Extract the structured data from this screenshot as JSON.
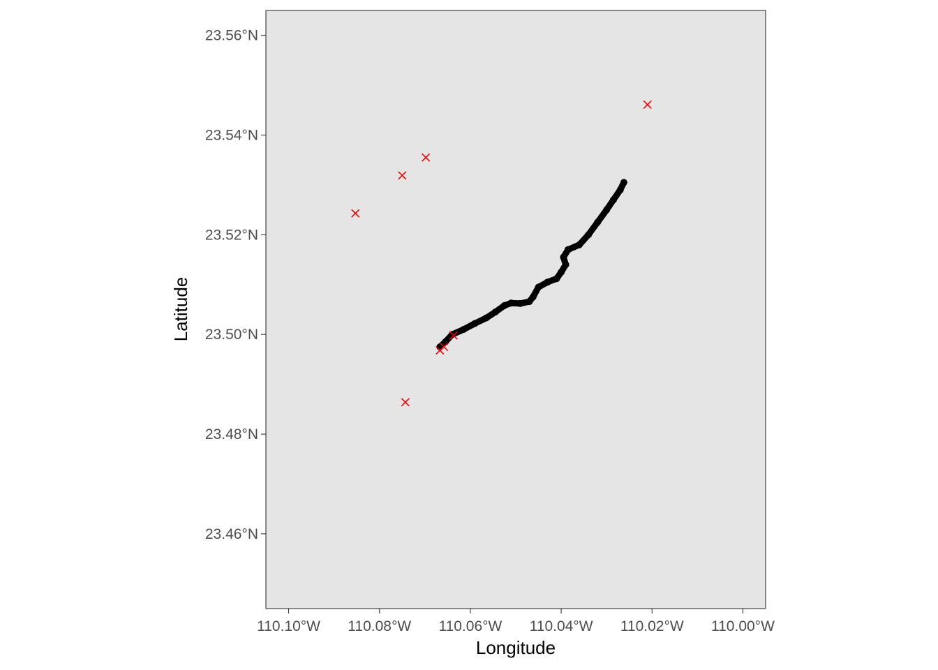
{
  "chart_data": {
    "type": "scatter",
    "title": "",
    "xlabel": "Longitude",
    "ylabel": "Latitude",
    "xlim": [
      -110.105,
      -109.995
    ],
    "ylim": [
      23.445,
      23.565
    ],
    "x_ticks": [
      {
        "value": -110.1,
        "label": "110.10°W"
      },
      {
        "value": -110.08,
        "label": "110.08°W"
      },
      {
        "value": -110.06,
        "label": "110.06°W"
      },
      {
        "value": -110.04,
        "label": "110.04°W"
      },
      {
        "value": -110.02,
        "label": "110.02°W"
      },
      {
        "value": -110.0,
        "label": "110.00°W"
      }
    ],
    "y_ticks": [
      {
        "value": 23.46,
        "label": "23.46°N"
      },
      {
        "value": 23.48,
        "label": "23.48°N"
      },
      {
        "value": 23.5,
        "label": "23.50°N"
      },
      {
        "value": 23.52,
        "label": "23.52°N"
      },
      {
        "value": 23.54,
        "label": "23.54°N"
      },
      {
        "value": 23.56,
        "label": "23.56°N"
      }
    ],
    "grid": false,
    "colors": {
      "panel": "#e5e5e5",
      "border": "#333333",
      "track": "#000000",
      "points": "#ee0000"
    },
    "series": [
      {
        "marker": "track",
        "x": [
          -110.0667,
          -110.0655,
          -110.064,
          -110.0615,
          -110.059,
          -110.0565,
          -110.0545,
          -110.0525,
          -110.051,
          -110.049,
          -110.047,
          -110.0462,
          -110.045,
          -110.043,
          -110.041,
          -110.04,
          -110.039,
          -110.0395,
          -110.0385,
          -110.036,
          -110.034,
          -110.032,
          -110.03,
          -110.0285,
          -110.027,
          -110.0262
        ],
        "y": [
          23.4975,
          23.4985,
          23.5,
          23.501,
          23.5022,
          23.5033,
          23.5045,
          23.5058,
          23.5063,
          23.5062,
          23.5066,
          23.5075,
          23.5095,
          23.5105,
          23.5112,
          23.5125,
          23.514,
          23.5155,
          23.517,
          23.518,
          23.52,
          23.5225,
          23.525,
          23.527,
          23.529,
          23.5305
        ]
      },
      {
        "marker": "x",
        "x": [
          -110.0853,
          -110.075,
          -110.0698,
          -110.021,
          -110.0667,
          -110.0658,
          -110.0637,
          -110.0743
        ],
        "y": [
          23.5243,
          23.5319,
          23.5355,
          23.5461,
          23.4968,
          23.4975,
          23.4998,
          23.4864
        ]
      }
    ]
  }
}
